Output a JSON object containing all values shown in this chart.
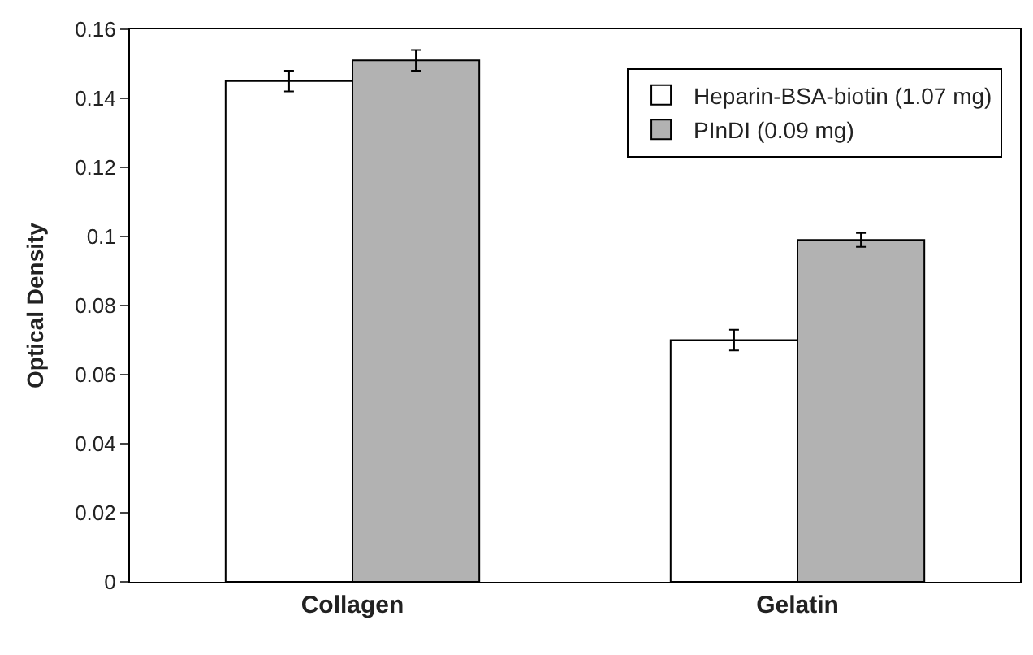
{
  "chart_data": {
    "type": "bar",
    "ylabel": "Optical Density",
    "categories": [
      "Collagen",
      "Gelatin"
    ],
    "series": [
      {
        "name": "Heparin-BSA-biotin (1.07 mg)",
        "color": "#ffffff",
        "values": [
          0.145,
          0.07
        ],
        "errors": [
          0.003,
          0.003
        ]
      },
      {
        "name": "PInDI (0.09 mg)",
        "color": "#b2b2b2",
        "values": [
          0.151,
          0.099
        ],
        "errors": [
          0.003,
          0.002
        ]
      }
    ],
    "ylim": [
      0,
      0.16
    ],
    "yticks": [
      0,
      0.02,
      0.04,
      0.06,
      0.08,
      {
        "value": 0.1,
        "label": "0.1"
      },
      0.12,
      0.14,
      0.16
    ],
    "legend": "top right"
  }
}
